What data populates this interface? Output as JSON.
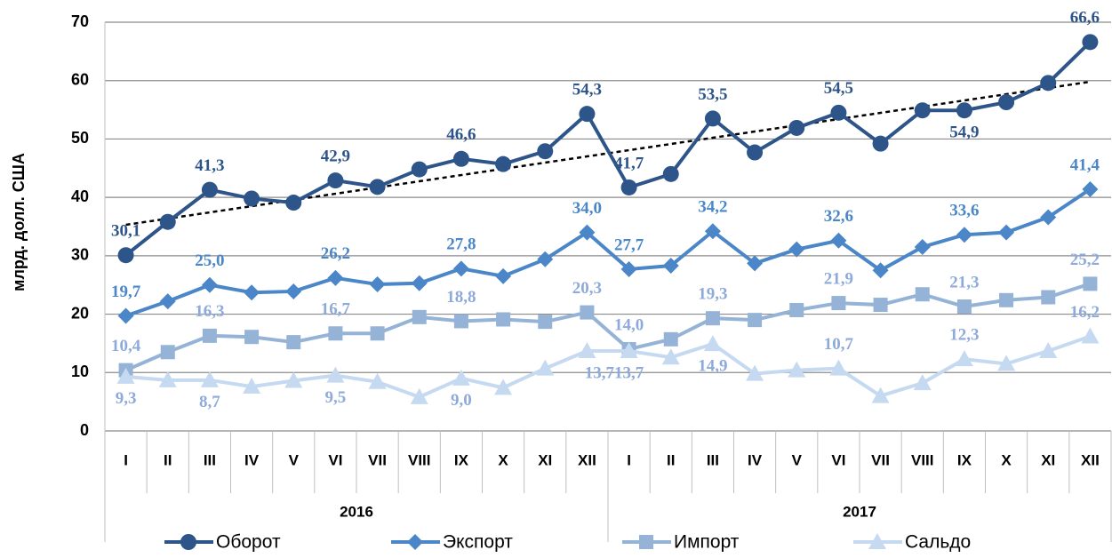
{
  "chart_data": {
    "type": "line",
    "y_label": "млрд. долл. США",
    "categories": [
      "I",
      "II",
      "III",
      "IV",
      "V",
      "VI",
      "VII",
      "VIII",
      "IX",
      "X",
      "XI",
      "XII",
      "I",
      "II",
      "III",
      "IV",
      "V",
      "VI",
      "VII",
      "VIII",
      "IX",
      "X",
      "XI",
      "XII"
    ],
    "groups": [
      {
        "name": "2016",
        "span": 12
      },
      {
        "name": "2017",
        "span": 12
      }
    ],
    "ylim": [
      0,
      70
    ],
    "yticks": [
      0,
      10,
      20,
      30,
      40,
      50,
      60,
      70
    ],
    "grid": true,
    "legend": "bottom",
    "trendline": {
      "start": 35.3,
      "end": 59.8,
      "color": "#000000"
    },
    "series": [
      {
        "name": "Оборот",
        "color": "#2e5589",
        "marker": "circle",
        "values": [
          30.1,
          35.8,
          41.3,
          39.8,
          39.1,
          42.9,
          41.8,
          44.8,
          46.6,
          45.7,
          47.9,
          54.3,
          41.7,
          44.0,
          53.5,
          47.7,
          51.9,
          54.5,
          49.2,
          54.9,
          54.9,
          56.3,
          59.6,
          66.6
        ],
        "value_labels": [
          "30,1",
          null,
          "41,3",
          null,
          null,
          "42,9",
          null,
          null,
          "46,6",
          null,
          null,
          "54,3",
          "41,7",
          null,
          "53,5",
          null,
          null,
          "54,5",
          null,
          null,
          "54,9",
          null,
          null,
          "66,6"
        ]
      },
      {
        "name": "Экспорт",
        "color": "#4a86c8",
        "marker": "diamond",
        "values": [
          19.7,
          22.2,
          25.0,
          23.7,
          23.9,
          26.2,
          25.1,
          25.3,
          27.8,
          26.5,
          29.4,
          34.0,
          27.7,
          28.3,
          34.2,
          28.7,
          31.1,
          32.6,
          27.5,
          31.5,
          33.6,
          34.0,
          36.6,
          41.4
        ],
        "value_labels": [
          "19,7",
          null,
          "25,0",
          null,
          null,
          "26,2",
          null,
          null,
          "27,8",
          null,
          null,
          "34,0",
          "27,7",
          null,
          "34,2",
          null,
          null,
          "32,6",
          null,
          null,
          "33,6",
          null,
          null,
          "41,4"
        ]
      },
      {
        "name": "Импорт",
        "color": "#95b3d7",
        "marker": "square",
        "values": [
          10.4,
          13.5,
          16.3,
          16.1,
          15.2,
          16.7,
          16.7,
          19.5,
          18.8,
          19.1,
          18.7,
          20.3,
          14.0,
          15.7,
          19.3,
          19.0,
          20.7,
          21.9,
          21.6,
          23.4,
          21.3,
          22.4,
          22.9,
          25.2
        ],
        "value_labels": [
          "10,4",
          null,
          "16,3",
          null,
          null,
          "16,7",
          null,
          null,
          "18,8",
          null,
          null,
          "20,3",
          "14,0",
          null,
          "19,3",
          null,
          null,
          "21,9",
          null,
          null,
          "21,3",
          null,
          null,
          "25,2"
        ]
      },
      {
        "name": "Сальдо",
        "color": "#c5d9f1",
        "marker": "triangle",
        "values": [
          9.3,
          8.7,
          8.7,
          7.6,
          8.6,
          9.5,
          8.4,
          5.8,
          9.0,
          7.4,
          10.7,
          13.7,
          13.7,
          12.6,
          14.9,
          9.8,
          10.4,
          10.7,
          6.0,
          8.2,
          12.3,
          11.5,
          13.7,
          16.2
        ],
        "value_labels": [
          "9,3",
          null,
          "8,7",
          null,
          null,
          "9,5",
          null,
          null,
          "9,0",
          null,
          null,
          "13,7",
          "13,7",
          null,
          "14,9",
          null,
          null,
          "10,7",
          null,
          null,
          "12,3",
          null,
          null,
          "16,2"
        ]
      }
    ]
  }
}
